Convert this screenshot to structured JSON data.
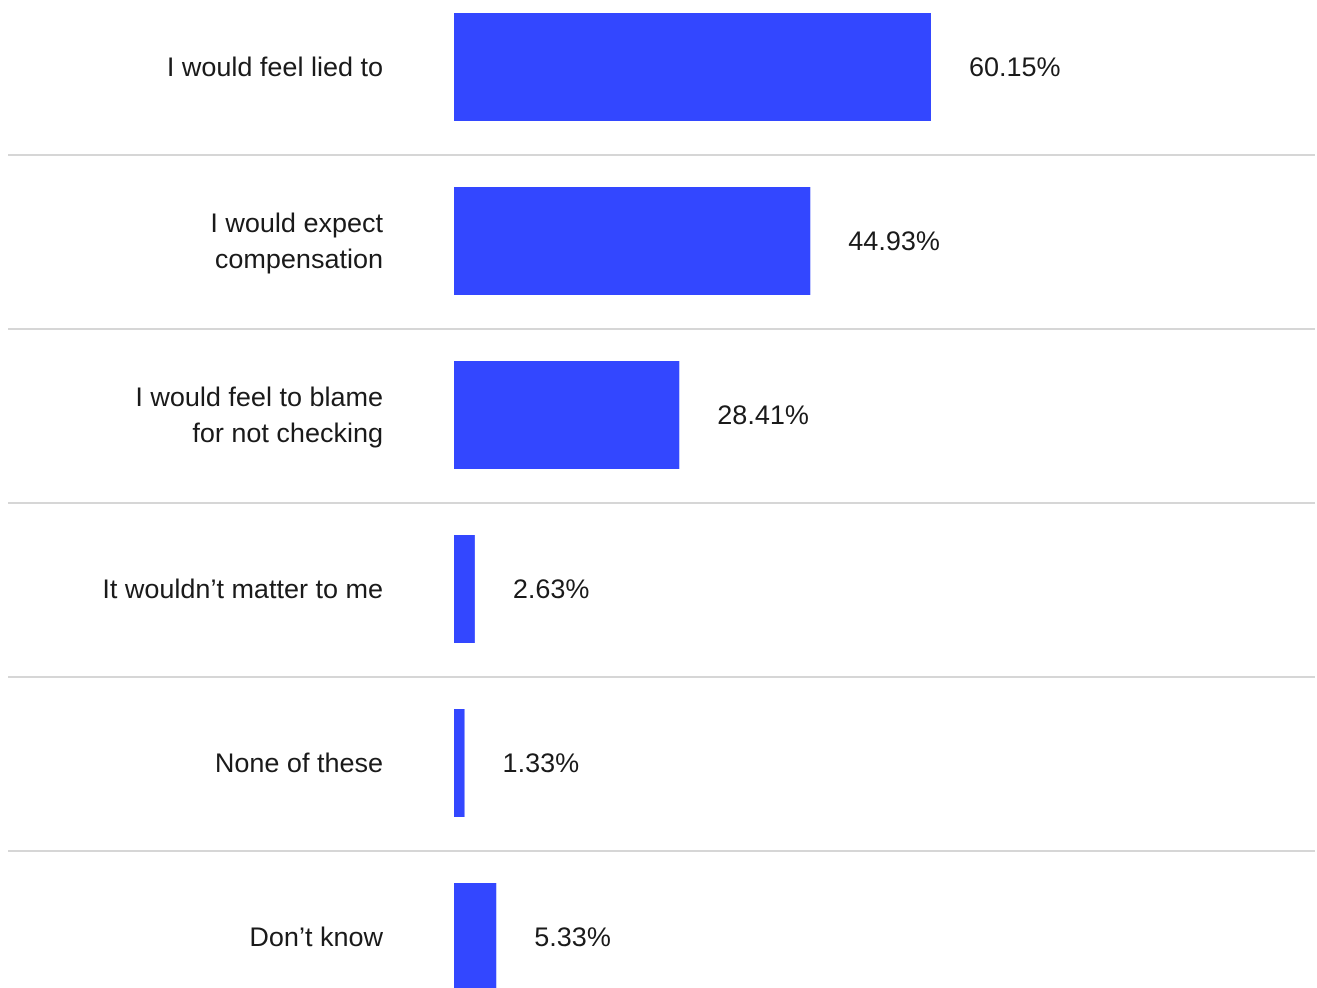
{
  "chart_data": {
    "type": "bar",
    "orientation": "horizontal",
    "categories": [
      [
        "I would feel lied to"
      ],
      [
        "I would expect",
        "compensation"
      ],
      [
        "I would feel to blame",
        "for not checking"
      ],
      [
        "It wouldn’t matter to me"
      ],
      [
        "None of these"
      ],
      [
        "Don’t know"
      ]
    ],
    "values": [
      60.15,
      44.93,
      28.41,
      2.63,
      1.33,
      5.33
    ],
    "value_labels": [
      "60.15%",
      "44.93%",
      "28.41%",
      "2.63%",
      "1.33%",
      "5.33%"
    ],
    "xlim": [
      0,
      100
    ],
    "title": "",
    "xlabel": "",
    "ylabel": "",
    "grid": false,
    "row_dividers": true,
    "bar_color": "#3347ff",
    "divider_color": "#c8c8c8"
  }
}
